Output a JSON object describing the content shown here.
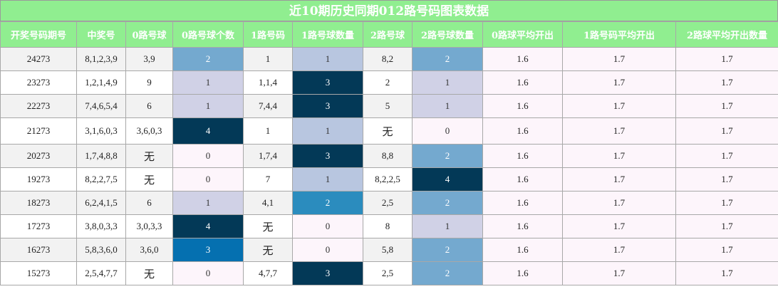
{
  "title": "近10期历史同期012路号码图表数据",
  "headers": [
    "开奖号码期号",
    "中奖号",
    "0路号球",
    "0路号球个数",
    "1路号码",
    "1路号球数量",
    "2路号球",
    "2路号球数量",
    "0路球平均开出",
    "1路号码平均开出",
    "2路球平均开出数量"
  ],
  "colors": {
    "header_bg": "#90ee90",
    "header_text": "#ffffff",
    "pale_cell": "#fdf5fb",
    "level_1": "#d0d1e6",
    "level_1_alt": "#b8c6e0",
    "level_2": "#74a9cf",
    "level_2_alt": "#2b8cbe",
    "level_3": "#0570b0",
    "level_3_dark": "#033957",
    "level_4": "#023858"
  },
  "rows": [
    {
      "issue": "24273",
      "numbers": "8,1,2,3,9",
      "road0": "3,9",
      "road0_count": "2",
      "road1": "1",
      "road1_count": "1",
      "road2": "8,2",
      "road2_count": "2",
      "avg0": "1.6",
      "avg1": "1.7",
      "avg2": "1.7"
    },
    {
      "issue": "23273",
      "numbers": "1,2,1,4,9",
      "road0": "9",
      "road0_count": "1",
      "road1": "1,1,4",
      "road1_count": "3",
      "road2": "2",
      "road2_count": "1",
      "avg0": "1.6",
      "avg1": "1.7",
      "avg2": "1.7"
    },
    {
      "issue": "22273",
      "numbers": "7,4,6,5,4",
      "road0": "6",
      "road0_count": "1",
      "road1": "7,4,4",
      "road1_count": "3",
      "road2": "5",
      "road2_count": "1",
      "avg0": "1.6",
      "avg1": "1.7",
      "avg2": "1.7"
    },
    {
      "issue": "21273",
      "numbers": "3,1,6,0,3",
      "road0": "3,6,0,3",
      "road0_count": "4",
      "road1": "1",
      "road1_count": "1",
      "road2": "无",
      "road2_count": "0",
      "avg0": "1.6",
      "avg1": "1.7",
      "avg2": "1.7"
    },
    {
      "issue": "20273",
      "numbers": "1,7,4,8,8",
      "road0": "无",
      "road0_count": "0",
      "road1": "1,7,4",
      "road1_count": "3",
      "road2": "8,8",
      "road2_count": "2",
      "avg0": "1.6",
      "avg1": "1.7",
      "avg2": "1.7"
    },
    {
      "issue": "19273",
      "numbers": "8,2,2,7,5",
      "road0": "无",
      "road0_count": "0",
      "road1": "7",
      "road1_count": "1",
      "road2": "8,2,2,5",
      "road2_count": "4",
      "avg0": "1.6",
      "avg1": "1.7",
      "avg2": "1.7"
    },
    {
      "issue": "18273",
      "numbers": "6,2,4,1,5",
      "road0": "6",
      "road0_count": "1",
      "road1": "4,1",
      "road1_count": "2",
      "road2": "2,5",
      "road2_count": "2",
      "avg0": "1.6",
      "avg1": "1.7",
      "avg2": "1.7"
    },
    {
      "issue": "17273",
      "numbers": "3,8,0,3,3",
      "road0": "3,0,3,3",
      "road0_count": "4",
      "road1": "无",
      "road1_count": "0",
      "road2": "8",
      "road2_count": "1",
      "avg0": "1.6",
      "avg1": "1.7",
      "avg2": "1.7"
    },
    {
      "issue": "16273",
      "numbers": "5,8,3,6,0",
      "road0": "3,6,0",
      "road0_count": "3",
      "road1": "无",
      "road1_count": "0",
      "road2": "5,8",
      "road2_count": "2",
      "avg0": "1.6",
      "avg1": "1.7",
      "avg2": "1.7"
    },
    {
      "issue": "15273",
      "numbers": "2,5,4,7,7",
      "road0": "无",
      "road0_count": "0",
      "road1": "4,7,7",
      "road1_count": "3",
      "road2": "2,5",
      "road2_count": "2",
      "avg0": "1.6",
      "avg1": "1.7",
      "avg2": "1.7"
    }
  ],
  "cell_fills": [
    {
      "road0_count": "#74a9cf",
      "road1_count": "#b8c6e0",
      "road2_count": "#74a9cf"
    },
    {
      "road0_count": "#d0d1e6",
      "road1_count": "#033957",
      "road2_count": "#d0d1e6"
    },
    {
      "road0_count": "#d0d1e6",
      "road1_count": "#033957",
      "road2_count": "#d0d1e6"
    },
    {
      "road0_count": "#033957",
      "road1_count": "#b8c6e0",
      "road2_count": "#fdf5fb"
    },
    {
      "road0_count": "#fdf5fb",
      "road1_count": "#033957",
      "road2_count": "#74a9cf"
    },
    {
      "road0_count": "#fdf5fb",
      "road1_count": "#b8c6e0",
      "road2_count": "#033957"
    },
    {
      "road0_count": "#d0d1e6",
      "road1_count": "#2b8cbe",
      "road2_count": "#74a9cf"
    },
    {
      "road0_count": "#033957",
      "road1_count": "#fdf5fb",
      "road2_count": "#d0d1e6"
    },
    {
      "road0_count": "#0570b0",
      "road1_count": "#fdf5fb",
      "road2_count": "#74a9cf"
    },
    {
      "road0_count": "#fdf5fb",
      "road1_count": "#033957",
      "road2_count": "#74a9cf"
    }
  ]
}
